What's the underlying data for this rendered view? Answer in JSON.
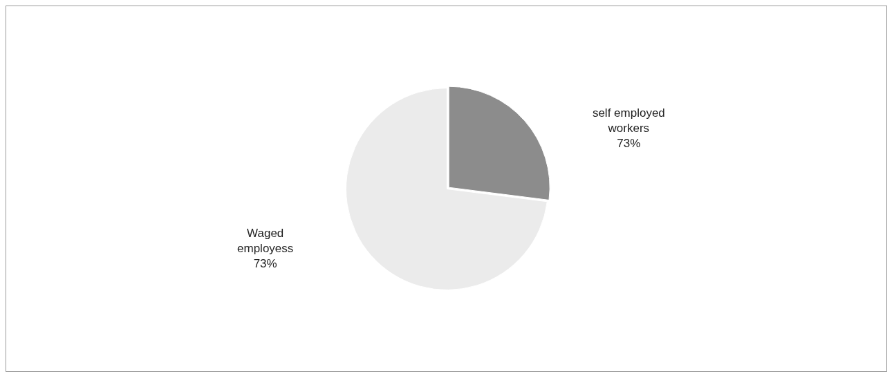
{
  "chart_data": {
    "type": "pie",
    "categories": [
      "self employed workers",
      "Waged employess"
    ],
    "values": [
      27,
      73
    ],
    "annotations": [
      "73%",
      "73%"
    ],
    "colors": [
      "#8c8c8c",
      "#ebebeb"
    ],
    "legend": false
  }
}
